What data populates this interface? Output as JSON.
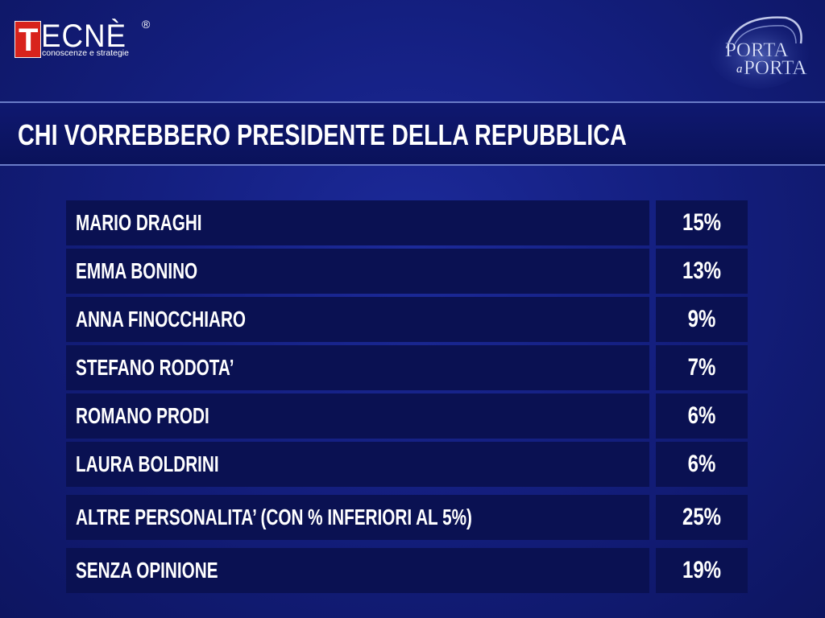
{
  "branding": {
    "tecne_letter": "T",
    "tecne_name": "ECNÈ",
    "tecne_reg": "®",
    "tecne_tagline": "conoscenze e strategie",
    "porta_line1": "PORTA",
    "porta_small": "a",
    "porta_line2": "PORTA"
  },
  "colors": {
    "background": "#141f80",
    "row_background": "#0a1152",
    "logo_red": "#d8231c"
  },
  "chart_data": {
    "type": "table",
    "title": "CHI VORREBBERO PRESIDENTE DELLA REPUBBLICA",
    "rows": [
      {
        "label": "MARIO DRAGHI",
        "value": "15%"
      },
      {
        "label": "EMMA BONINO",
        "value": "13%"
      },
      {
        "label": "ANNA FINOCCHIARO",
        "value": "9%"
      },
      {
        "label": "STEFANO RODOTA’",
        "value": "7%"
      },
      {
        "label": "ROMANO PRODI",
        "value": "6%"
      },
      {
        "label": "LAURA BOLDRINI",
        "value": "6%"
      },
      {
        "label": "ALTRE PERSONALITA’ (CON % INFERIORI AL 5%)",
        "value": "25%"
      },
      {
        "label": "SENZA OPINIONE",
        "value": "19%"
      }
    ]
  }
}
